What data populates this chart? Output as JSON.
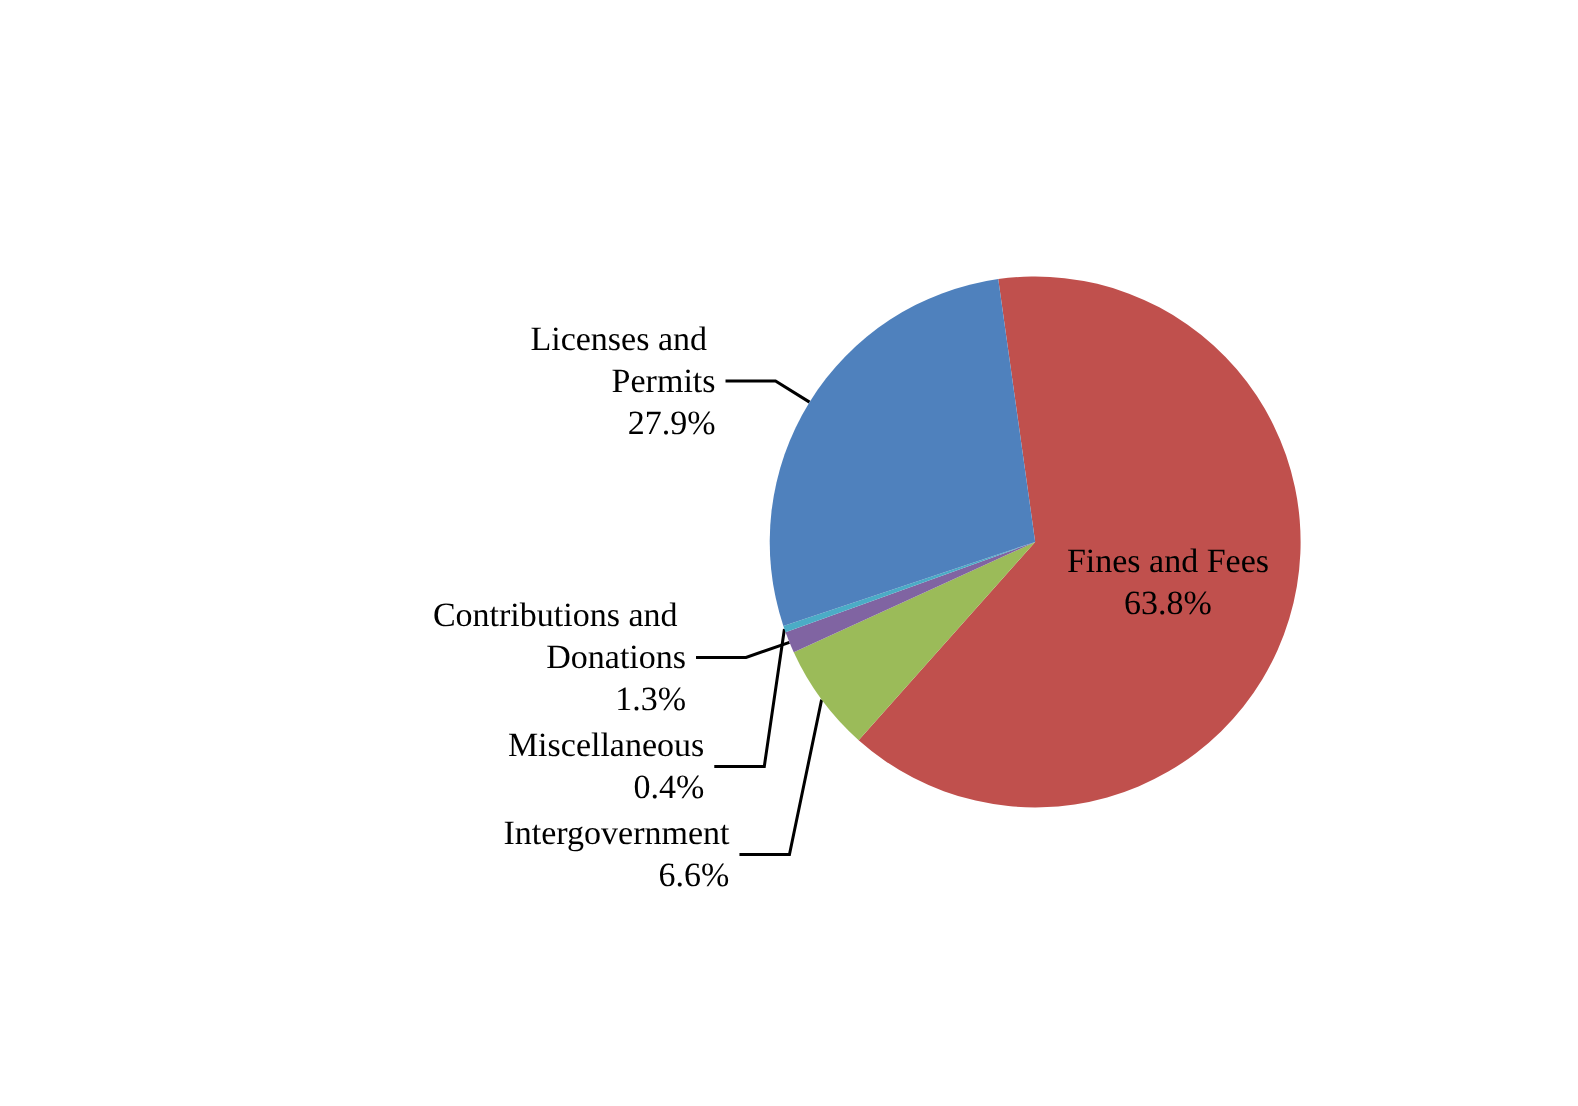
{
  "chart_data": {
    "type": "pie",
    "categories": [
      "Fines and Fees",
      "Intergovernment",
      "Contributions and Donations",
      "Miscellaneous",
      "Licenses and Permits"
    ],
    "values": [
      63.8,
      6.6,
      1.3,
      0.4,
      27.9
    ],
    "colors": [
      "#c0504d",
      "#9bbb59",
      "#8064a2",
      "#4bacc6",
      "#4f81bd"
    ],
    "value_labels": [
      "63.8%",
      "6.6%",
      "1.3%",
      "0.4%",
      "27.9%"
    ]
  }
}
